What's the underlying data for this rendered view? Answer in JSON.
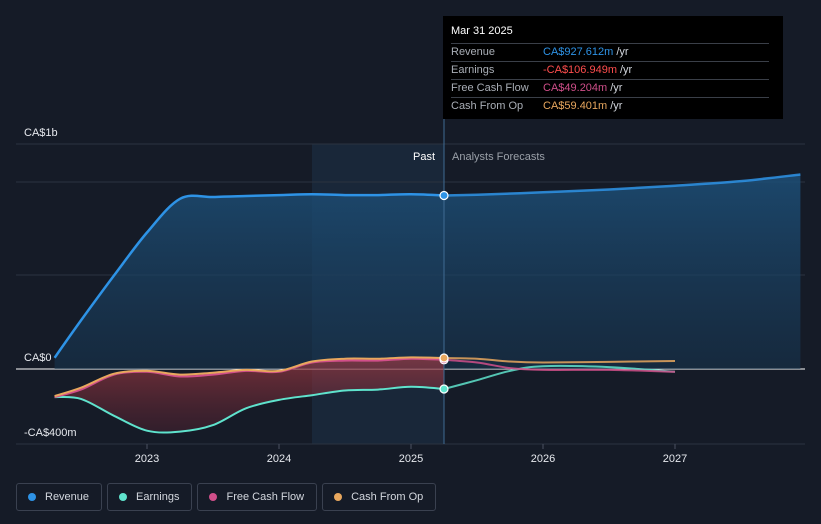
{
  "colors": {
    "revenue": "#2e93e6",
    "earnings": "#5fe3cd",
    "fcf": "#d04f8a",
    "cfo": "#e8a75e"
  },
  "tooltip": {
    "date": "Mar 31 2025",
    "rows": [
      {
        "name": "Revenue",
        "value": "CA$927.612m",
        "unit": "/yr",
        "color": "#2e93e6"
      },
      {
        "name": "Earnings",
        "value": "-CA$106.949m",
        "unit": "/yr",
        "color": "#ff4d4d"
      },
      {
        "name": "Free Cash Flow",
        "value": "CA$49.204m",
        "unit": "/yr",
        "color": "#d04f8a"
      },
      {
        "name": "Cash From Op",
        "value": "CA$59.401m",
        "unit": "/yr",
        "color": "#e8a75e"
      }
    ]
  },
  "legend": [
    {
      "label": "Revenue",
      "color": "#2e93e6"
    },
    {
      "label": "Earnings",
      "color": "#5fe3cd"
    },
    {
      "label": "Free Cash Flow",
      "color": "#d04f8a"
    },
    {
      "label": "Cash From Op",
      "color": "#e8a75e"
    }
  ],
  "chart_data": {
    "type": "line",
    "y_unit": "CA$ m",
    "ylim": [
      -400,
      1000
    ],
    "xlim": [
      2022.3,
      2027.95
    ],
    "y_labels": [
      {
        "value": 1000,
        "text": "CA$1b"
      },
      {
        "value": 0,
        "text": "CA$0"
      },
      {
        "value": -400,
        "text": "-CA$400m"
      }
    ],
    "x_ticks": [
      {
        "value": 2023,
        "text": "2023"
      },
      {
        "value": 2024,
        "text": "2024"
      },
      {
        "value": 2025,
        "text": "2025"
      },
      {
        "value": 2026,
        "text": "2026"
      },
      {
        "value": 2027,
        "text": "2027"
      }
    ],
    "past_label": "Past",
    "forecast_label": "Analysts Forecasts",
    "present_x": 2025.25,
    "shade_start_x": 2024.25,
    "series": [
      {
        "name": "Revenue",
        "key": "revenue",
        "past": [
          [
            2022.3,
            60
          ],
          [
            2022.5,
            260
          ],
          [
            2022.75,
            500
          ],
          [
            2023.0,
            730
          ],
          [
            2023.25,
            910
          ],
          [
            2023.5,
            920
          ],
          [
            2023.75,
            925
          ],
          [
            2024.0,
            930
          ],
          [
            2024.25,
            935
          ],
          [
            2024.5,
            930
          ],
          [
            2024.75,
            930
          ],
          [
            2025.0,
            935
          ],
          [
            2025.25,
            928
          ]
        ],
        "forecast": [
          [
            2025.25,
            928
          ],
          [
            2025.5,
            932
          ],
          [
            2026.0,
            945
          ],
          [
            2026.5,
            960
          ],
          [
            2027.0,
            980
          ],
          [
            2027.5,
            1005
          ],
          [
            2027.95,
            1040
          ]
        ]
      },
      {
        "name": "Earnings",
        "key": "earnings",
        "past": [
          [
            2022.3,
            -150
          ],
          [
            2022.5,
            -160
          ],
          [
            2022.75,
            -250
          ],
          [
            2023.0,
            -330
          ],
          [
            2023.25,
            -335
          ],
          [
            2023.5,
            -300
          ],
          [
            2023.75,
            -210
          ],
          [
            2024.0,
            -165
          ],
          [
            2024.25,
            -140
          ],
          [
            2024.5,
            -115
          ],
          [
            2024.75,
            -110
          ],
          [
            2025.0,
            -95
          ],
          [
            2025.25,
            -107
          ]
        ],
        "forecast": [
          [
            2025.25,
            -107
          ],
          [
            2025.5,
            -60
          ],
          [
            2025.75,
            -10
          ],
          [
            2026.0,
            15
          ],
          [
            2026.5,
            10
          ],
          [
            2027.0,
            -15
          ]
        ]
      },
      {
        "name": "Free Cash Flow",
        "key": "fcf",
        "past": [
          [
            2022.3,
            -150
          ],
          [
            2022.5,
            -110
          ],
          [
            2022.75,
            -30
          ],
          [
            2023.0,
            -15
          ],
          [
            2023.25,
            -40
          ],
          [
            2023.5,
            -30
          ],
          [
            2023.75,
            -10
          ],
          [
            2024.0,
            -15
          ],
          [
            2024.25,
            35
          ],
          [
            2024.5,
            45
          ],
          [
            2024.75,
            45
          ],
          [
            2025.0,
            55
          ],
          [
            2025.25,
            49
          ]
        ],
        "forecast": [
          [
            2025.25,
            49
          ],
          [
            2025.5,
            35
          ],
          [
            2025.75,
            5
          ],
          [
            2026.0,
            -5
          ],
          [
            2026.5,
            -5
          ],
          [
            2027.0,
            -15
          ]
        ]
      },
      {
        "name": "Cash From Op",
        "key": "cfo",
        "past": [
          [
            2022.3,
            -145
          ],
          [
            2022.5,
            -100
          ],
          [
            2022.75,
            -25
          ],
          [
            2023.0,
            -10
          ],
          [
            2023.25,
            -30
          ],
          [
            2023.5,
            -20
          ],
          [
            2023.75,
            -5
          ],
          [
            2024.0,
            -10
          ],
          [
            2024.25,
            40
          ],
          [
            2024.5,
            55
          ],
          [
            2024.75,
            55
          ],
          [
            2025.0,
            62
          ],
          [
            2025.25,
            59
          ]
        ],
        "forecast": [
          [
            2025.25,
            59
          ],
          [
            2025.5,
            55
          ],
          [
            2025.75,
            40
          ],
          [
            2026.0,
            35
          ],
          [
            2026.5,
            38
          ],
          [
            2027.0,
            43
          ]
        ]
      }
    ]
  }
}
